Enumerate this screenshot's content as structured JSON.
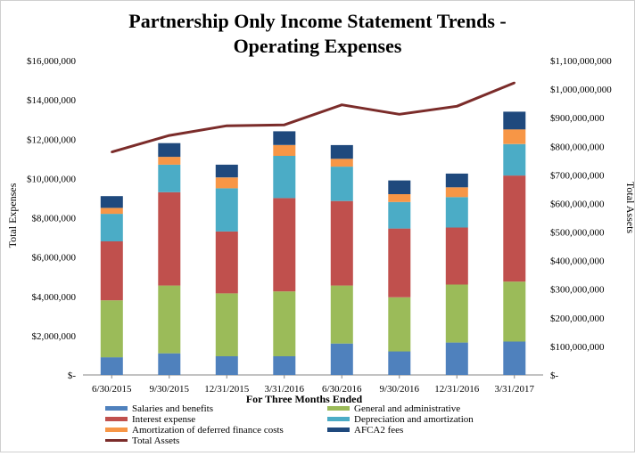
{
  "chart_data": {
    "type": "bar",
    "subtype": "stacked-bar-with-line",
    "title_lines": [
      "Partnership Only Income Statement Trends -",
      "Operating Expenses"
    ],
    "xlabel": "For Three Months  Ended",
    "ylabel": "Total Expenses",
    "y2label": "Total Assets",
    "categories": [
      "6/30/2015",
      "9/30/2015",
      "12/31/2015",
      "3/31/2016",
      "6/30/2016",
      "9/30/2016",
      "12/31/2016",
      "3/31/2017"
    ],
    "ylim": [
      0,
      16000000
    ],
    "y2lim": [
      0,
      1100000000
    ],
    "yticks": [
      "$-",
      "$2,000,000",
      "$4,000,000",
      "$6,000,000",
      "$8,000,000",
      "$10,000,000",
      "$12,000,000",
      "$14,000,000",
      "$16,000,000"
    ],
    "y2ticks": [
      "$-",
      "$100,000,000",
      "$200,000,000",
      "$300,000,000",
      "$400,000,000",
      "$500,000,000",
      "$600,000,000",
      "$700,000,000",
      "$800,000,000",
      "$900,000,000",
      "$1,000,000,000",
      "$1,100,000,000"
    ],
    "grid": false,
    "legend_position": "bottom",
    "series": [
      {
        "name": "Salaries and benefits",
        "color": "#4f81bd",
        "values": [
          900000,
          1100000,
          950000,
          950000,
          1600000,
          1200000,
          1650000,
          1700000
        ]
      },
      {
        "name": "General and administrative",
        "color": "#9bbb59",
        "values": [
          2900000,
          3450000,
          3200000,
          3300000,
          2950000,
          2750000,
          2950000,
          3050000
        ]
      },
      {
        "name": "Interest expense",
        "color": "#c0504d",
        "values": [
          3000000,
          4750000,
          3150000,
          4750000,
          4300000,
          3500000,
          2900000,
          5400000
        ]
      },
      {
        "name": "Depreciation and amortization",
        "color": "#4bacc6",
        "values": [
          1400000,
          1400000,
          2200000,
          2150000,
          1750000,
          1350000,
          1550000,
          1600000
        ]
      },
      {
        "name": "Amortization of deferred finance costs",
        "color": "#f79646",
        "values": [
          300000,
          400000,
          550000,
          550000,
          400000,
          400000,
          500000,
          750000
        ]
      },
      {
        "name": "AFCA2 fees",
        "color": "#1f497d",
        "values": [
          600000,
          700000,
          650000,
          700000,
          700000,
          700000,
          700000,
          900000
        ]
      }
    ],
    "line_series": {
      "name": "Total Assets",
      "color": "#7b2c2a",
      "axis": "right",
      "values": [
        780000000,
        838000000,
        872000000,
        875000000,
        945000000,
        912000000,
        940000000,
        1022000000
      ]
    }
  }
}
